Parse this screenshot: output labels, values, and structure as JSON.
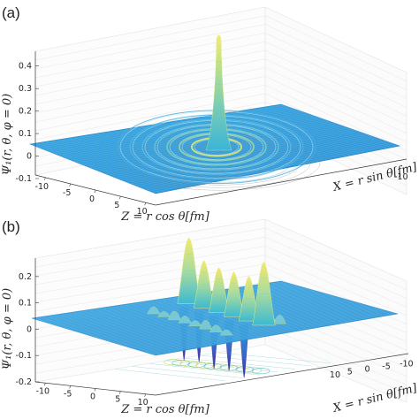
{
  "chart_data": [
    {
      "type": "surface",
      "panel_label": "(a)",
      "zlabel": "Ψ₁(r, θ, φ = 0)",
      "xlabel": "Z = r cos θ[fm]",
      "ylabel": "X = r sin θ[fm]",
      "z_ticks": [
        "-0.1",
        "0",
        "0.1",
        "0.2",
        "0.3",
        "0.4"
      ],
      "x_ticks": [
        "-10",
        "-5",
        "0",
        "5",
        "10"
      ],
      "y_ticks": [
        "-10"
      ],
      "zlim": [
        -0.1,
        0.45
      ],
      "xlim": [
        -12,
        12
      ],
      "ylim": [
        -12,
        12
      ],
      "peak_value": 0.43,
      "shape": "central peak with concentric radial ripples",
      "colormap": "parula",
      "grid": true
    },
    {
      "type": "surface",
      "panel_label": "(b)",
      "zlabel": "Ψ₁(r, θ, φ = 0)",
      "xlabel": "Z = r cos θ[fm]",
      "ylabel": "X = r sin θ[fm]",
      "z_ticks": [
        "-0.2",
        "-0.1",
        "0",
        "0.1",
        "0.2"
      ],
      "x_ticks": [
        "-10",
        "-5",
        "0",
        "5",
        "10"
      ],
      "y_ticks": [
        "-10",
        "-5",
        "0",
        "5",
        "10"
      ],
      "zlim": [
        -0.2,
        0.27
      ],
      "xlim": [
        -12,
        12
      ],
      "ylim": [
        -12,
        12
      ],
      "peaks": [
        {
          "z": -8,
          "value": 0.25
        },
        {
          "z": -5,
          "value": 0.18
        },
        {
          "z": -2,
          "value": 0.17
        },
        {
          "z": 1,
          "value": 0.17
        },
        {
          "z": 4,
          "value": 0.17
        },
        {
          "z": 7,
          "value": 0.24
        }
      ],
      "troughs": [
        {
          "z": -6.5,
          "value": -0.2
        },
        {
          "z": -3.5,
          "value": -0.19
        },
        {
          "z": -0.5,
          "value": -0.2
        },
        {
          "z": 2.5,
          "value": -0.19
        },
        {
          "z": 5.5,
          "value": -0.2
        }
      ],
      "colormap": "parula",
      "grid": true
    }
  ]
}
